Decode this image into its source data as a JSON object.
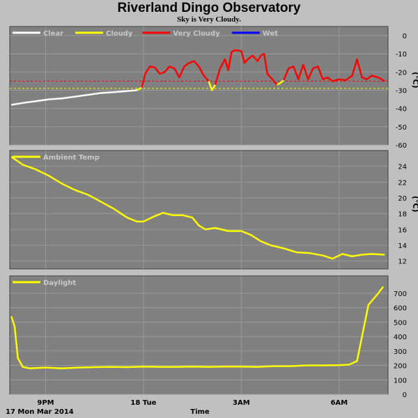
{
  "title": "Riverland Dingo Observatory",
  "status": "Sky is Very Cloudy.",
  "footer": {
    "date": "17 Mon Mar 2014",
    "xlabel": "Time"
  },
  "x_ticks": [
    {
      "label": "9PM",
      "t": 21
    },
    {
      "label": "18 Tue",
      "t": 24
    },
    {
      "label": "3AM",
      "t": 27
    },
    {
      "label": "6AM",
      "t": 30
    }
  ],
  "x_range": [
    19.9,
    31.5
  ],
  "colors": {
    "clear": "#ffffff",
    "cloudy": "#ffff00",
    "very_cloudy": "#ff0000",
    "wet": "#0000ff",
    "temp": "#ffff00",
    "daylight": "#ffff00"
  },
  "chart_data": [
    {
      "type": "line",
      "unit": "(°C)",
      "ylim": [
        -60,
        5
      ],
      "y_ticks": [
        0,
        -10,
        -20,
        -30,
        -40,
        -50,
        -60
      ],
      "legend": [
        "Clear",
        "Cloudy",
        "Very Cloudy",
        "Wet"
      ],
      "thresholds": {
        "cloudy": -29,
        "very_cloudy": -25
      },
      "series": [
        {
          "name": "Clear",
          "points": [
            [
              19.95,
              -38
            ],
            [
              20.3,
              -37
            ],
            [
              20.7,
              -36
            ],
            [
              21.1,
              -35
            ],
            [
              21.5,
              -34.5
            ],
            [
              21.9,
              -33.5
            ],
            [
              22.3,
              -32.5
            ],
            [
              22.7,
              -31.5
            ],
            [
              23.1,
              -31
            ],
            [
              23.5,
              -30.5
            ],
            [
              23.8,
              -30
            ]
          ]
        },
        {
          "name": "Cloudy",
          "points": [
            [
              23.8,
              -30
            ],
            [
              23.95,
              -28.5
            ]
          ]
        },
        {
          "name": "Very Cloudy",
          "points": [
            [
              23.95,
              -28.5
            ],
            [
              24.05,
              -21
            ],
            [
              24.2,
              -17
            ],
            [
              24.35,
              -17.5
            ],
            [
              24.5,
              -21
            ],
            [
              24.65,
              -20
            ],
            [
              24.8,
              -17
            ],
            [
              24.95,
              -18
            ],
            [
              25.1,
              -23
            ],
            [
              25.25,
              -17
            ],
            [
              25.4,
              -15
            ],
            [
              25.55,
              -14
            ],
            [
              25.7,
              -17
            ],
            [
              25.85,
              -22
            ],
            [
              26.0,
              -25
            ]
          ]
        },
        {
          "name": "Cloudy",
          "points": [
            [
              26.0,
              -25
            ],
            [
              26.1,
              -30
            ],
            [
              26.2,
              -27
            ]
          ]
        },
        {
          "name": "Very Cloudy",
          "points": [
            [
              26.2,
              -27
            ],
            [
              26.35,
              -18
            ],
            [
              26.5,
              -13
            ],
            [
              26.6,
              -19
            ],
            [
              26.7,
              -9
            ],
            [
              26.8,
              -8
            ],
            [
              27.0,
              -8.5
            ],
            [
              27.1,
              -15
            ],
            [
              27.2,
              -13
            ],
            [
              27.35,
              -11
            ],
            [
              27.5,
              -14
            ],
            [
              27.6,
              -11
            ],
            [
              27.7,
              -10
            ],
            [
              27.8,
              -21
            ],
            [
              27.95,
              -24
            ],
            [
              28.1,
              -27
            ]
          ]
        },
        {
          "name": "Cloudy",
          "points": [
            [
              28.1,
              -27
            ],
            [
              28.2,
              -26
            ],
            [
              28.3,
              -24.5
            ]
          ]
        },
        {
          "name": "Very Cloudy",
          "points": [
            [
              28.3,
              -24.5
            ],
            [
              28.45,
              -18
            ],
            [
              28.6,
              -17
            ],
            [
              28.75,
              -24
            ],
            [
              28.9,
              -16
            ],
            [
              29.05,
              -24
            ],
            [
              29.2,
              -18
            ],
            [
              29.35,
              -17
            ],
            [
              29.5,
              -24
            ],
            [
              29.65,
              -23
            ],
            [
              29.8,
              -25
            ],
            [
              30.0,
              -24
            ],
            [
              30.2,
              -24.5
            ],
            [
              30.4,
              -22
            ],
            [
              30.55,
              -13
            ],
            [
              30.7,
              -23
            ],
            [
              30.85,
              -24
            ],
            [
              31.0,
              -22
            ],
            [
              31.2,
              -23
            ],
            [
              31.4,
              -25
            ]
          ]
        }
      ]
    },
    {
      "type": "line",
      "unit": "(°C)",
      "ylim": [
        11,
        26
      ],
      "y_ticks": [
        24,
        22,
        20,
        18,
        16,
        14,
        12
      ],
      "legend": [
        "Ambient Temp"
      ],
      "series": [
        {
          "name": "Ambient Temp",
          "points": [
            [
              19.95,
              25.2
            ],
            [
              20.3,
              24.2
            ],
            [
              20.7,
              23.6
            ],
            [
              21.1,
              22.8
            ],
            [
              21.5,
              21.8
            ],
            [
              21.9,
              21.0
            ],
            [
              22.3,
              20.4
            ],
            [
              22.7,
              19.5
            ],
            [
              23.1,
              18.6
            ],
            [
              23.5,
              17.5
            ],
            [
              23.8,
              17.0
            ],
            [
              24.0,
              17.0
            ],
            [
              24.3,
              17.6
            ],
            [
              24.6,
              18.1
            ],
            [
              24.9,
              17.8
            ],
            [
              25.2,
              17.8
            ],
            [
              25.5,
              17.5
            ],
            [
              25.7,
              16.5
            ],
            [
              25.9,
              16.0
            ],
            [
              26.2,
              16.2
            ],
            [
              26.6,
              15.8
            ],
            [
              27.0,
              15.8
            ],
            [
              27.3,
              15.3
            ],
            [
              27.6,
              14.5
            ],
            [
              27.9,
              14.0
            ],
            [
              28.3,
              13.6
            ],
            [
              28.7,
              13.1
            ],
            [
              29.1,
              13.0
            ],
            [
              29.5,
              12.7
            ],
            [
              29.8,
              12.3
            ],
            [
              30.1,
              12.9
            ],
            [
              30.4,
              12.6
            ],
            [
              30.7,
              12.8
            ],
            [
              31.0,
              12.9
            ],
            [
              31.4,
              12.8
            ]
          ]
        }
      ]
    },
    {
      "type": "line",
      "unit": "",
      "ylim": [
        0,
        820
      ],
      "y_ticks": [
        700,
        600,
        500,
        400,
        300,
        200,
        100,
        0
      ],
      "legend": [
        "Daylight"
      ],
      "series": [
        {
          "name": "Daylight",
          "points": [
            [
              19.95,
              540
            ],
            [
              20.05,
              470
            ],
            [
              20.15,
              250
            ],
            [
              20.3,
              190
            ],
            [
              20.5,
              180
            ],
            [
              21.0,
              185
            ],
            [
              21.5,
              180
            ],
            [
              22.0,
              185
            ],
            [
              22.5,
              188
            ],
            [
              23.0,
              190
            ],
            [
              23.5,
              188
            ],
            [
              24.0,
              192
            ],
            [
              24.5,
              190
            ],
            [
              25.0,
              190
            ],
            [
              25.5,
              192
            ],
            [
              26.0,
              190
            ],
            [
              26.5,
              192
            ],
            [
              27.0,
              192
            ],
            [
              27.5,
              190
            ],
            [
              28.0,
              195
            ],
            [
              28.5,
              195
            ],
            [
              29.0,
              200
            ],
            [
              29.5,
              200
            ],
            [
              30.0,
              202
            ],
            [
              30.3,
              205
            ],
            [
              30.55,
              230
            ],
            [
              30.7,
              400
            ],
            [
              30.9,
              620
            ],
            [
              31.2,
              700
            ],
            [
              31.35,
              745
            ]
          ]
        }
      ]
    }
  ]
}
